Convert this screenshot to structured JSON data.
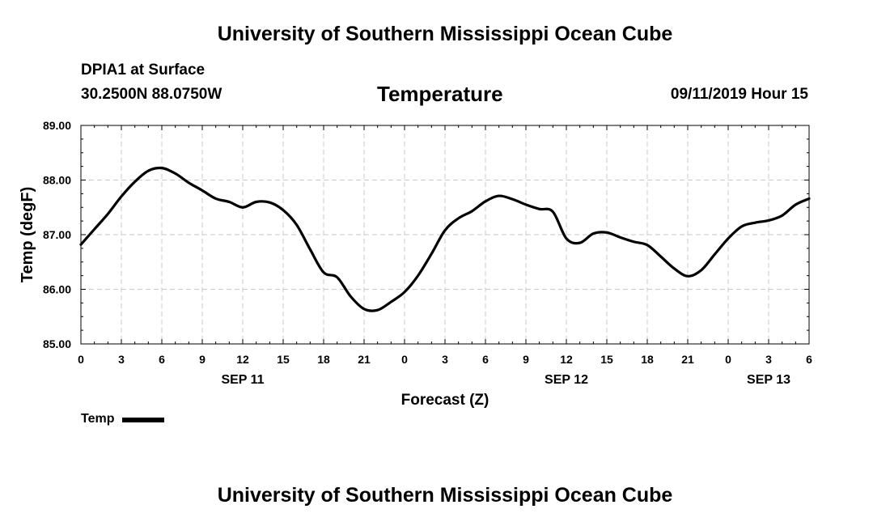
{
  "header": {
    "top_title": "University of Southern Mississippi Ocean Cube",
    "station_name": "DPIA1 at Surface",
    "station_coords": "30.2500N 88.0750W",
    "chart_title": "Temperature",
    "run_info": "09/11/2019 Hour 15"
  },
  "footer": {
    "bottom_title": "University of Southern Mississippi Ocean Cube"
  },
  "legend": {
    "label": "Temp",
    "color": "#000000"
  },
  "chart_data": {
    "type": "line",
    "title": "Temperature",
    "xlabel": "Forecast (Z)",
    "ylabel": "Temp (degF)",
    "xlim": [
      0,
      54
    ],
    "ylim": [
      85.0,
      89.0
    ],
    "y_ticks": [
      85.0,
      86.0,
      87.0,
      88.0,
      89.0
    ],
    "y_tick_labels": [
      "85.00",
      "86.00",
      "87.00",
      "88.00",
      "89.00"
    ],
    "x_ticks": [
      0,
      3,
      6,
      9,
      12,
      15,
      18,
      21,
      24,
      27,
      30,
      33,
      36,
      39,
      42,
      45,
      48,
      51,
      54
    ],
    "x_tick_labels": [
      "0",
      "3",
      "6",
      "9",
      "12",
      "15",
      "18",
      "21",
      "0",
      "3",
      "6",
      "9",
      "12",
      "15",
      "18",
      "21",
      "0",
      "3",
      "6"
    ],
    "date_labels": [
      {
        "x": 12,
        "label": "SEP 11"
      },
      {
        "x": 36,
        "label": "SEP 12"
      },
      {
        "x": 51,
        "label": "SEP 13"
      }
    ],
    "grid": true,
    "series": [
      {
        "name": "Temp",
        "color": "#000000",
        "x": [
          0,
          1,
          2,
          3,
          4,
          5,
          6,
          7,
          8,
          9,
          10,
          11,
          12,
          13,
          14,
          15,
          16,
          17,
          18,
          19,
          20,
          21,
          22,
          23,
          24,
          25,
          26,
          27,
          28,
          29,
          30,
          31,
          32,
          33,
          34,
          35,
          36,
          37,
          38,
          39,
          40,
          41,
          42,
          43,
          44,
          45,
          46,
          47,
          48,
          49,
          50,
          51,
          52,
          53,
          54
        ],
        "values": [
          86.82,
          87.1,
          87.38,
          87.7,
          87.97,
          88.17,
          88.22,
          88.12,
          87.95,
          87.81,
          87.66,
          87.6,
          87.5,
          87.6,
          87.59,
          87.45,
          87.18,
          86.73,
          86.31,
          86.22,
          85.87,
          85.64,
          85.62,
          85.77,
          85.95,
          86.25,
          86.65,
          87.08,
          87.3,
          87.43,
          87.61,
          87.71,
          87.65,
          87.55,
          87.47,
          87.42,
          86.93,
          86.85,
          87.02,
          87.04,
          86.95,
          86.87,
          86.81,
          86.6,
          86.38,
          86.24,
          86.35,
          86.64,
          86.93,
          87.15,
          87.22,
          87.26,
          87.35,
          87.55,
          87.66
        ]
      }
    ]
  }
}
